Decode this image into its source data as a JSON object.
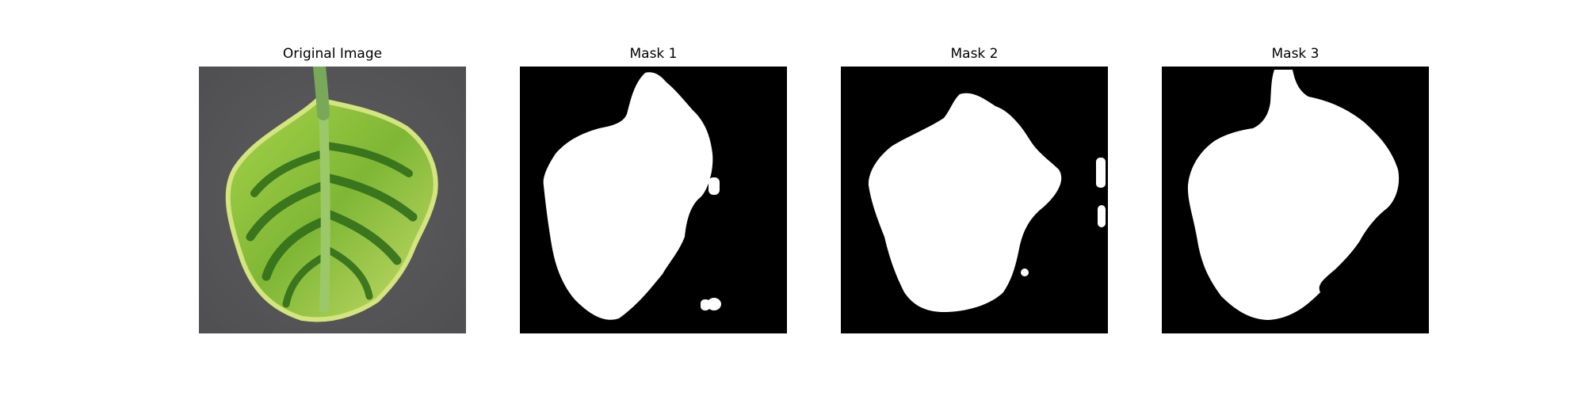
{
  "panels": [
    {
      "title": "Original Image",
      "kind": "photo"
    },
    {
      "title": "Mask 1",
      "kind": "mask"
    },
    {
      "title": "Mask 2",
      "kind": "mask"
    },
    {
      "title": "Mask 3",
      "kind": "mask"
    }
  ],
  "colors": {
    "photo_background": "#5a5a5c",
    "leaf_green": "#8fc43a",
    "leaf_dark": "#2f6b1a",
    "leaf_edge": "#d2e27a",
    "mask_background": "#000000",
    "mask_foreground": "#ffffff"
  }
}
